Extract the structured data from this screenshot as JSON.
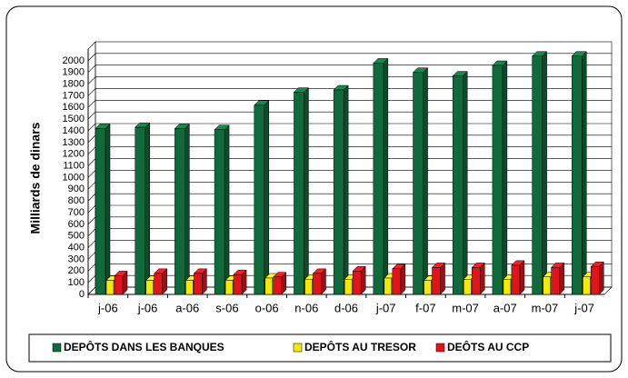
{
  "chart_data": {
    "type": "bar3d",
    "y_axis_label": "Milliards de dinars",
    "categories": [
      "j-06",
      "j-06",
      "a-06",
      "s-06",
      "o-06",
      "n-06",
      "d-06",
      "j-07",
      "f-07",
      "m-07",
      "a-07",
      "m-07",
      "j-07"
    ],
    "series": [
      {
        "name": "DEPÔTS DANS LES BANQUES",
        "color": "#0f6b3c",
        "values": [
          1420,
          1430,
          1420,
          1410,
          1620,
          1730,
          1750,
          1980,
          1900,
          1870,
          1960,
          2040,
          2040
        ]
      },
      {
        "name": "DEPÔTS AU TRESOR",
        "color": "#f2ea00",
        "values": [
          120,
          120,
          120,
          120,
          140,
          130,
          130,
          140,
          120,
          130,
          130,
          150,
          150
        ]
      },
      {
        "name": "DEÔTS AU CCP",
        "color": "#e0151c",
        "values": [
          160,
          180,
          180,
          170,
          150,
          180,
          200,
          220,
          230,
          230,
          250,
          230,
          240
        ]
      }
    ],
    "ylim": [
      0,
      2100
    ],
    "yticks": [
      0,
      100,
      200,
      300,
      400,
      500,
      600,
      700,
      800,
      900,
      1000,
      1100,
      1200,
      1300,
      1400,
      1500,
      1600,
      1700,
      1800,
      1900,
      2000
    ],
    "grid": true
  }
}
